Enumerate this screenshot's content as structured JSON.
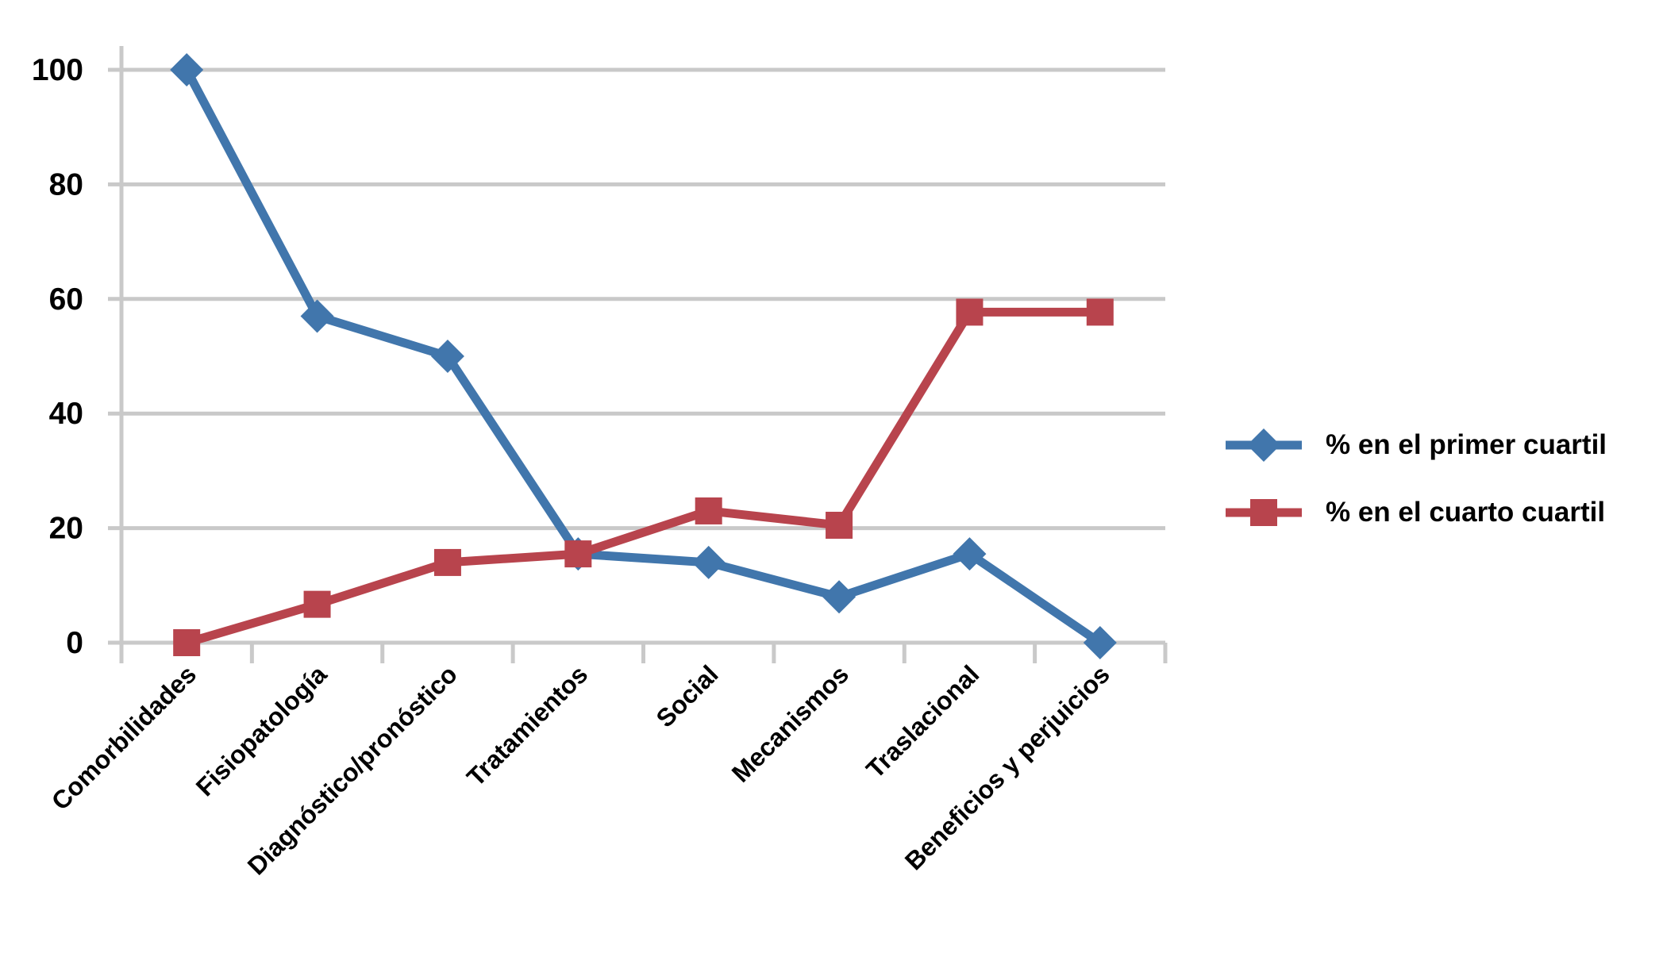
{
  "chart_data": {
    "type": "line",
    "title": "",
    "xlabel": "",
    "ylabel": "",
    "categories": [
      "Comorbilidades",
      "Fisiopatología",
      "Diagnóstico/pronóstico",
      "Tratamientos",
      "Social",
      "Mecanismos",
      "Traslacional",
      "Beneficios y perjuicios"
    ],
    "series": [
      {
        "name": "% en el primer cuartil",
        "marker": "diamond",
        "color": "#4176AC",
        "values": [
          100,
          57,
          50,
          15.5,
          14,
          8,
          15.5,
          0
        ]
      },
      {
        "name": "% en el cuarto cuartil",
        "marker": "square",
        "color": "#B8444D",
        "values": [
          0,
          6.7,
          14,
          15.5,
          23,
          20.5,
          57.7,
          57.7
        ]
      }
    ],
    "ylim": [
      0,
      100
    ],
    "yticks": [
      0,
      20,
      40,
      60,
      80,
      100
    ],
    "grid": "horizontal",
    "legend_position": "right"
  },
  "colors": {
    "grid": "#C9C9C9",
    "axis": "#C9C9C9",
    "tick_label": "#000000",
    "background": "#FFFFFF"
  }
}
